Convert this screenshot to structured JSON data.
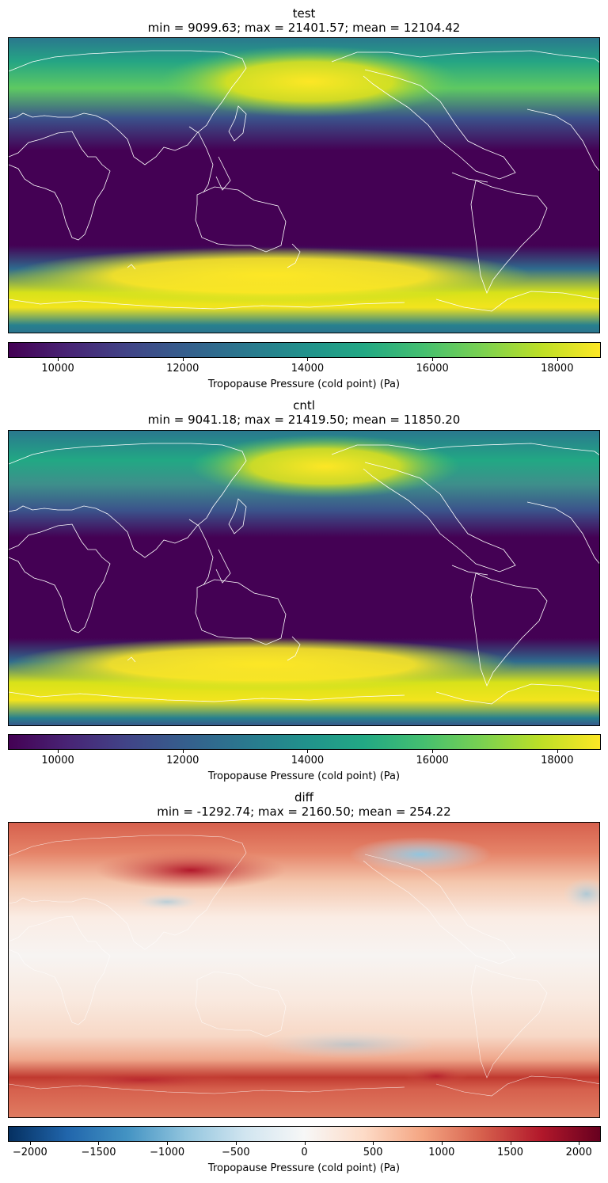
{
  "panels": [
    {
      "name": "test",
      "stats": "min = 9099.63; max = 21401.57; mean = 12104.42",
      "colorbar": {
        "colormap": "viridis",
        "range": [
          9200,
          18700
        ],
        "ticks": [
          "10000",
          "12000",
          "14000",
          "16000",
          "18000"
        ],
        "label": "Tropopause Pressure (cold point) (Pa)"
      }
    },
    {
      "name": "cntl",
      "stats": "min = 9041.18; max = 21419.50; mean = 11850.20",
      "colorbar": {
        "colormap": "viridis",
        "range": [
          9200,
          18700
        ],
        "ticks": [
          "10000",
          "12000",
          "14000",
          "16000",
          "18000"
        ],
        "label": "Tropopause Pressure (cold point) (Pa)"
      }
    },
    {
      "name": "diff",
      "stats": "min = -1292.74; max = 2160.50; mean = 254.22",
      "colorbar": {
        "colormap": "RdBu_r",
        "range": [
          -2160.5,
          2160.5
        ],
        "ticks": [
          "−2000",
          "−1500",
          "−1000",
          "−500",
          "0",
          "500",
          "1000",
          "1500",
          "2000"
        ],
        "label": "Tropopause Pressure (cold point) (Pa)"
      }
    }
  ],
  "colors": {
    "coastline": "#ffffff",
    "viridis_low": "#440154",
    "viridis_high": "#fde725",
    "diff_low": "#053061",
    "diff_mid": "#f7f7f7",
    "diff_high": "#67001f"
  }
}
